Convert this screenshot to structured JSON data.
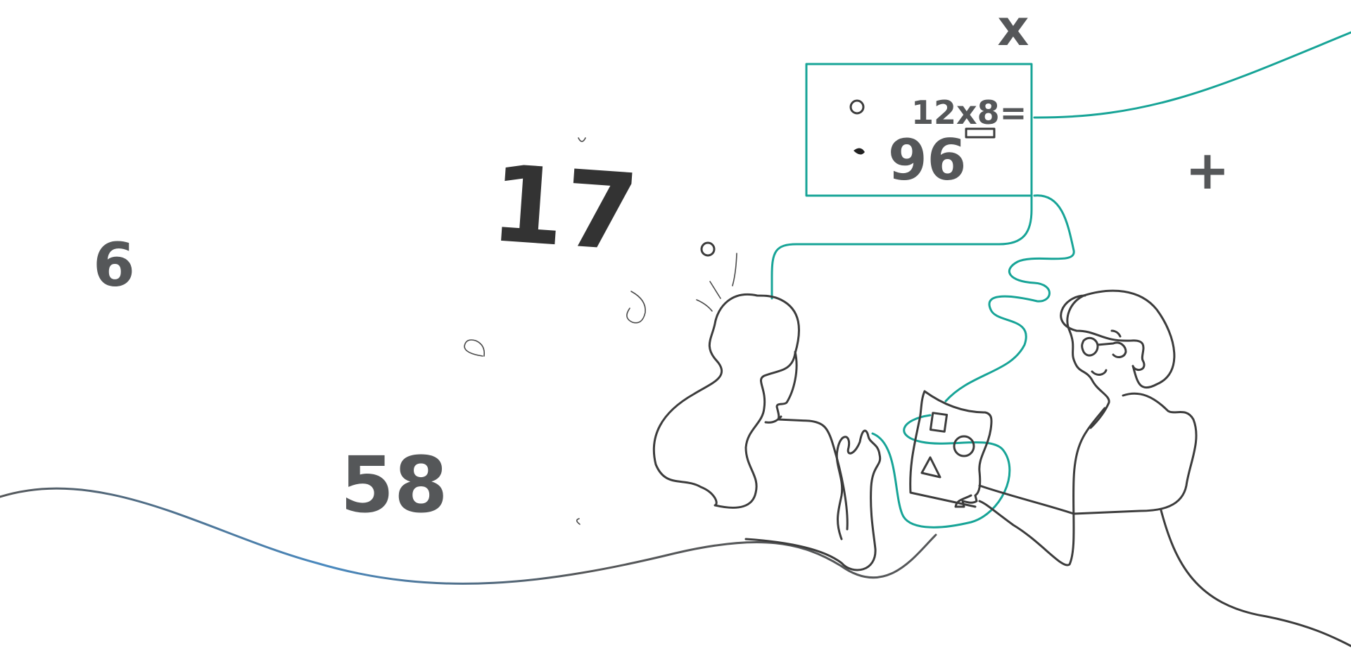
{
  "numbers": {
    "n6": "6",
    "n17": "17",
    "n58": "58"
  },
  "operators": {
    "times": "x",
    "plus": "+"
  },
  "board": {
    "equation": "12x8=",
    "answer": "96"
  },
  "colors": {
    "accent_teal": "#17a497",
    "ink": "#3c3c3c",
    "number_gray": "#555759",
    "wave_gradient_start": "#555759",
    "wave_gradient_mid": "#4a8ac0"
  }
}
